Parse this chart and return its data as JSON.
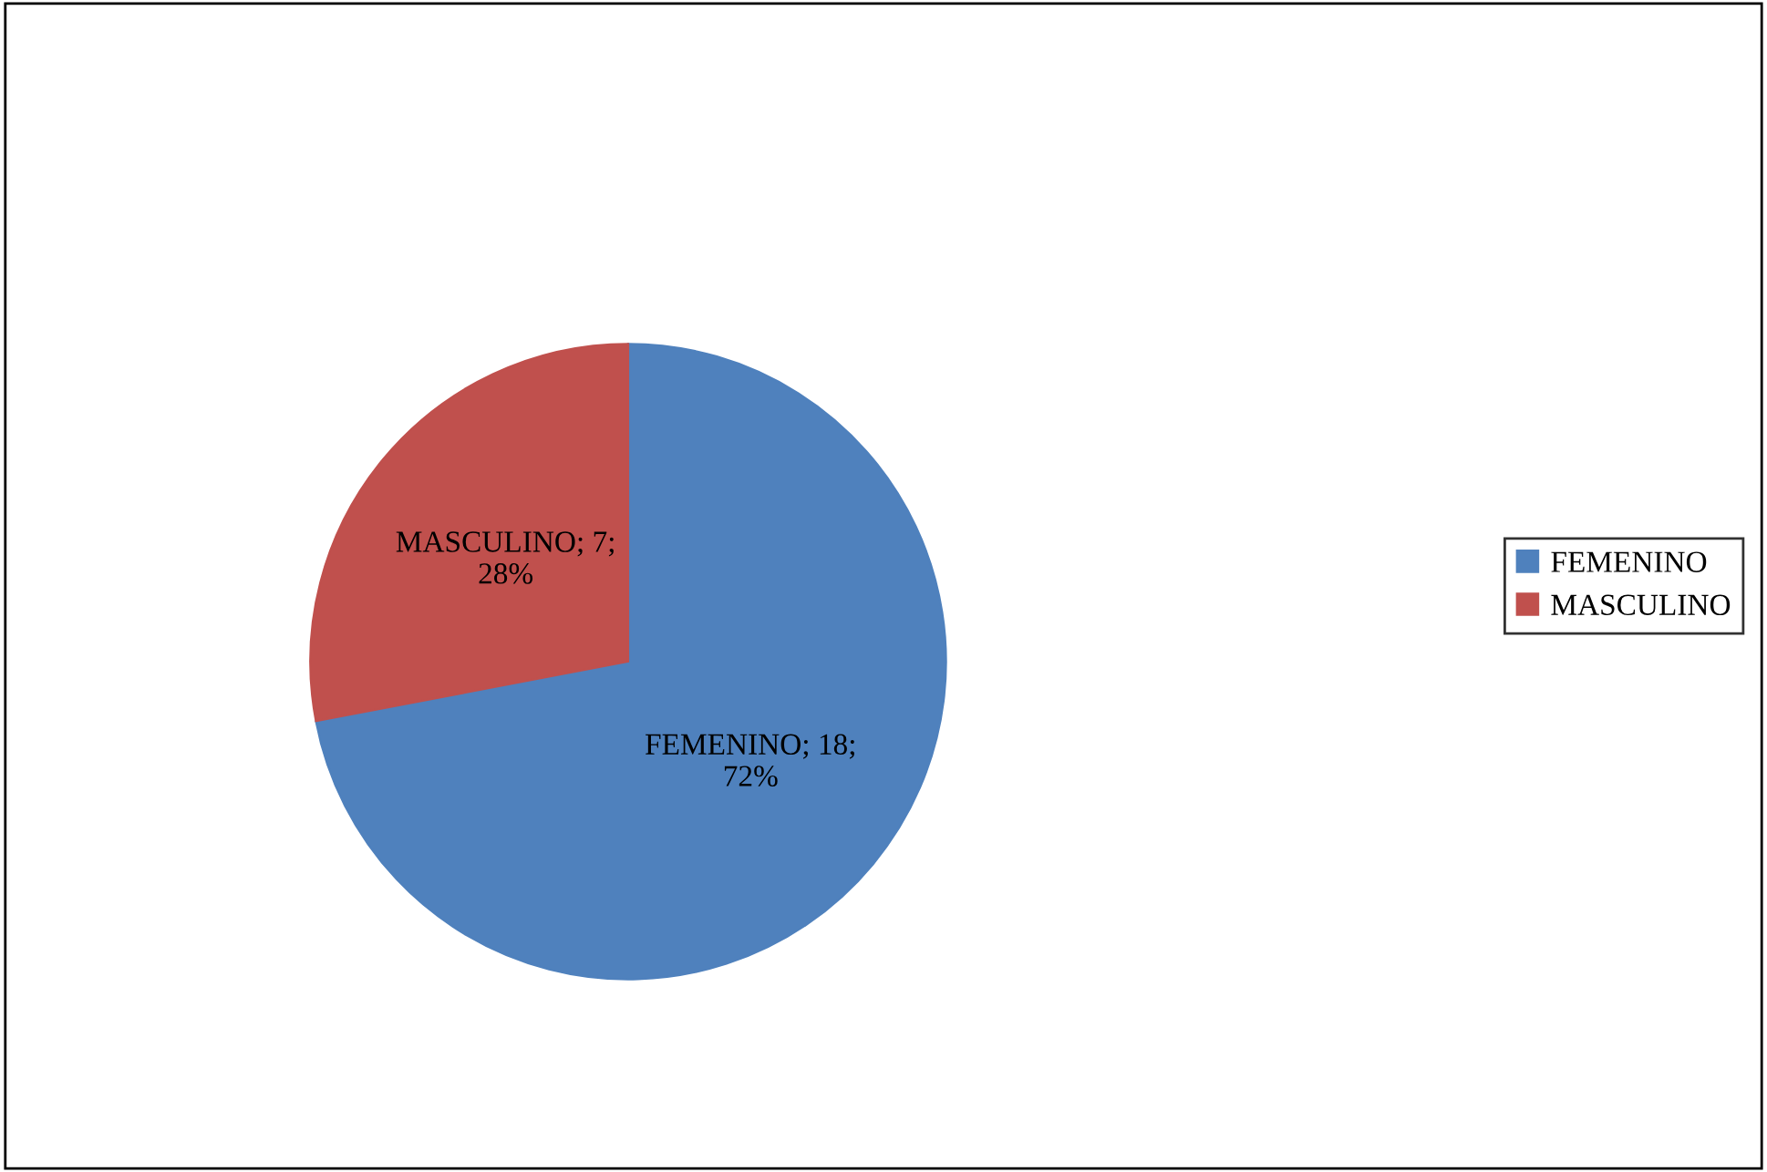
{
  "chart_data": {
    "type": "pie",
    "categories": [
      "FEMENINO",
      "MASCULINO"
    ],
    "values": [
      18,
      7
    ],
    "colors": [
      "#4f81bd",
      "#c0504d"
    ],
    "value_labels": [
      "FEMENINO; 18;\n72%",
      "MASCULINO; 7;\n28%"
    ],
    "legend": "right"
  }
}
